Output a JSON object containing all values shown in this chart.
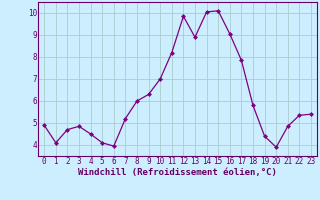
{
  "x": [
    0,
    1,
    2,
    3,
    4,
    5,
    6,
    7,
    8,
    9,
    10,
    11,
    12,
    13,
    14,
    15,
    16,
    17,
    18,
    19,
    20,
    21,
    22,
    23
  ],
  "y": [
    4.9,
    4.1,
    4.7,
    4.85,
    4.5,
    4.1,
    3.95,
    5.2,
    6.0,
    6.3,
    7.0,
    8.2,
    9.85,
    8.9,
    10.05,
    10.1,
    9.05,
    7.85,
    5.8,
    4.4,
    3.9,
    4.85,
    5.35,
    5.4
  ],
  "line_color": "#800080",
  "marker": "D",
  "markersize": 2.0,
  "linewidth": 0.9,
  "xlabel": "Windchill (Refroidissement éolien,°C)",
  "ylim": [
    3.5,
    10.5
  ],
  "xlim": [
    -0.5,
    23.5
  ],
  "yticks": [
    4,
    5,
    6,
    7,
    8,
    9,
    10
  ],
  "xticks": [
    0,
    1,
    2,
    3,
    4,
    5,
    6,
    7,
    8,
    9,
    10,
    11,
    12,
    13,
    14,
    15,
    16,
    17,
    18,
    19,
    20,
    21,
    22,
    23
  ],
  "bg_color": "#cceeff",
  "grid_color": "#aacccc",
  "xlabel_fontsize": 6.5,
  "tick_fontsize": 5.5,
  "label_color": "#660066"
}
